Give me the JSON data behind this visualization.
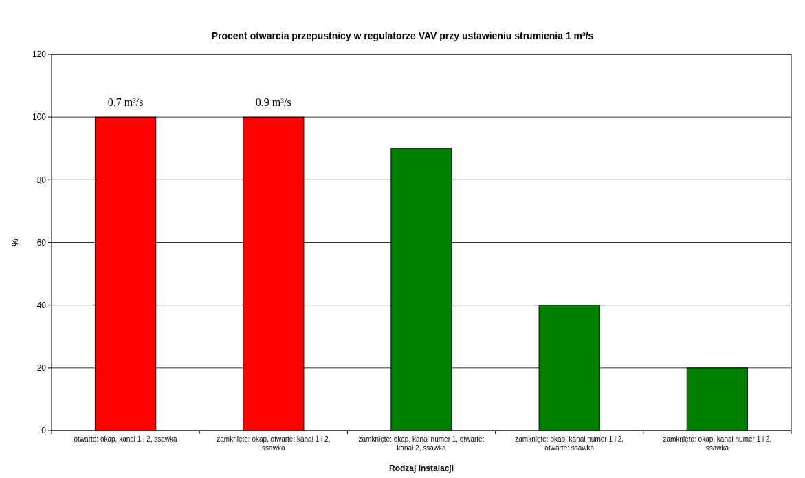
{
  "chart_data": {
    "type": "bar",
    "title": "Procent otwarcia przepustnicy w regulatorze VAV przy ustawieniu strumienia 1 m³/s",
    "xlabel": "Rodzaj instalacji",
    "ylabel": "%",
    "categories": [
      "otwarte: okap, kanał 1 i 2, ssawka",
      "zamknięte: okap, otwarte: kanał 1 i 2, ssawka",
      "zamknięte: okap, kanał numer 1, otwarte: kanał 2, ssawka",
      "zamknięte: okap, kanał numer 1 i 2, otwarte: ssawka",
      "zamknięte: okap, kanał numer 1 i 2, ssawka"
    ],
    "values": [
      100,
      100,
      90,
      40,
      20
    ],
    "colors": [
      "#ff0000",
      "#ff0000",
      "#008000",
      "#008000",
      "#008000"
    ],
    "ylim": [
      0,
      120
    ],
    "yticks": [
      0,
      20,
      40,
      60,
      80,
      100,
      120
    ],
    "grid": "y",
    "annotations": [
      {
        "text": "0.7 m³/s",
        "x": "otwarte: okap, kanał 1 i 2, ssawka",
        "y": 100
      },
      {
        "text": "0.9 m³/s",
        "x": "zamknięte: okap, otwarte: kanał 1 i 2, ssawka",
        "y": 100
      }
    ]
  }
}
